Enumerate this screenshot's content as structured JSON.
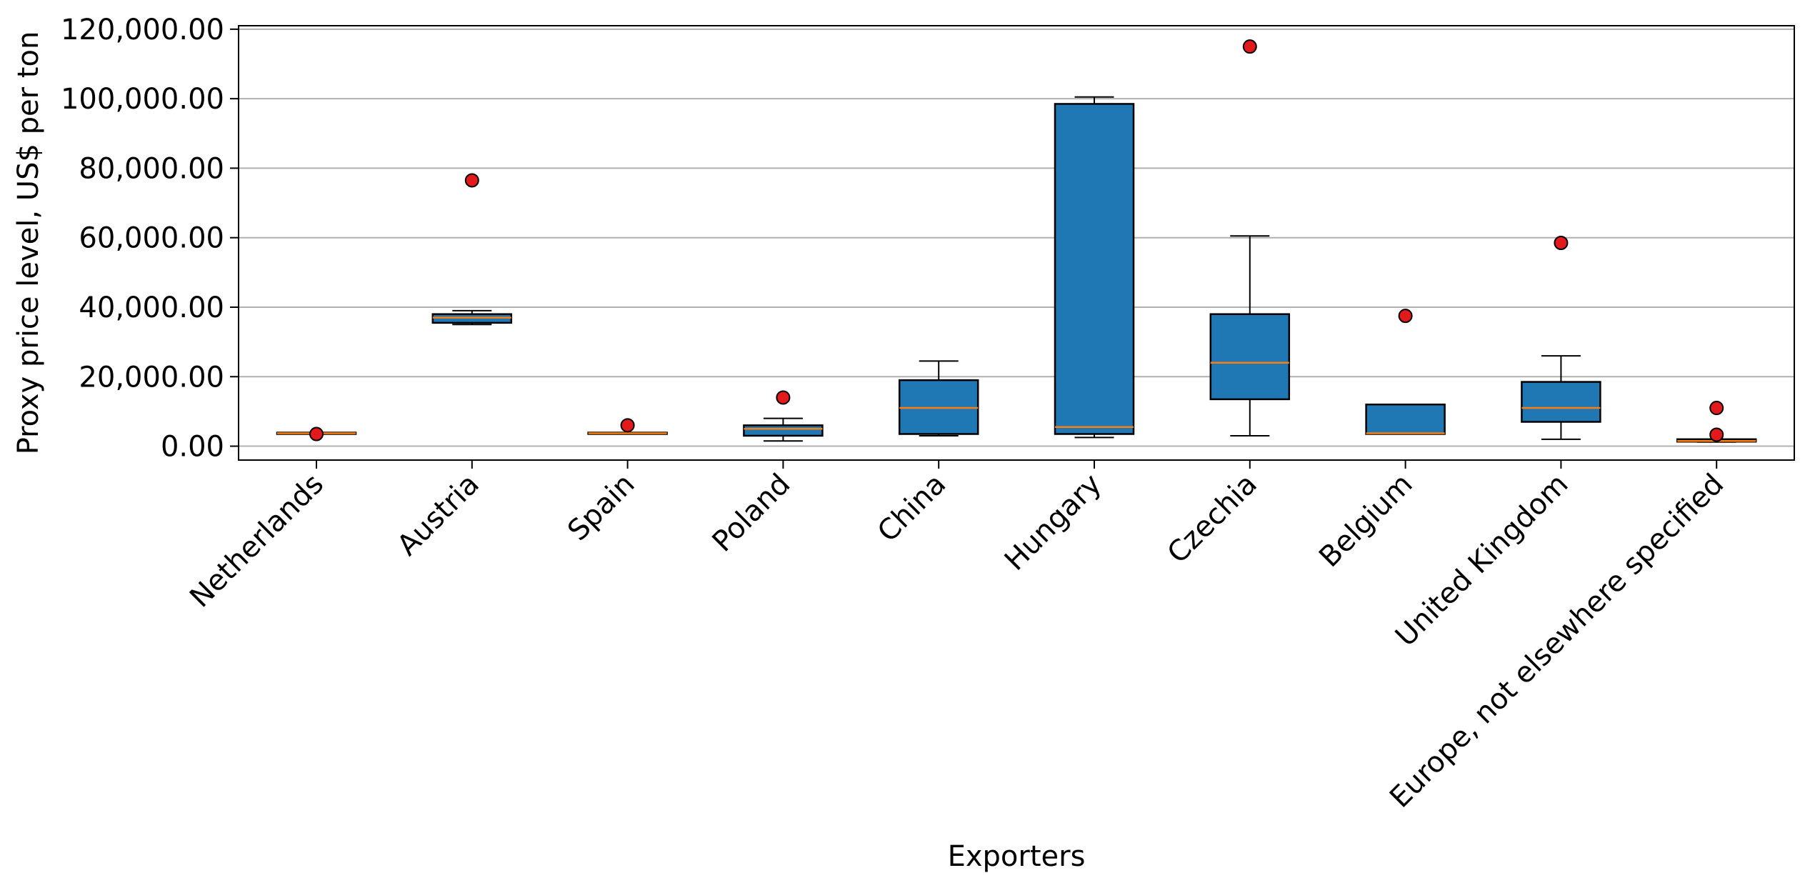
{
  "chart_data": {
    "type": "box",
    "xlabel": "Exporters",
    "ylabel": "Proxy price level, US$ per ton",
    "ylim": [
      -4000,
      121000
    ],
    "yticks": [
      0,
      20000,
      40000,
      60000,
      80000,
      100000,
      120000
    ],
    "ytick_labels": [
      "0.00",
      "20,000.00",
      "40,000.00",
      "60,000.00",
      "80,000.00",
      "100,000.00",
      "120,000.00"
    ],
    "grid": "horizontal",
    "box_color": "#1f77b4",
    "median_color": "#ff7f0e",
    "outlier_color": "#e31a1c",
    "categories": [
      "Netherlands",
      "Austria",
      "Spain",
      "Poland",
      "China",
      "Hungary",
      "Czechia",
      "Belgium",
      "United Kingdom",
      "Europe, not elsewhere specified"
    ],
    "boxes": [
      {
        "whislo": 3500,
        "q1": 3500,
        "med": 3700,
        "q3": 3900,
        "whishi": 3900,
        "fliers": [
          3500
        ]
      },
      {
        "whislo": 35000,
        "q1": 35500,
        "med": 37000,
        "q3": 38000,
        "whishi": 39000,
        "fliers": [
          76500
        ]
      },
      {
        "whislo": 3500,
        "q1": 3500,
        "med": 3700,
        "q3": 3900,
        "whishi": 3900,
        "fliers": [
          6000
        ]
      },
      {
        "whislo": 1500,
        "q1": 3000,
        "med": 5000,
        "q3": 6000,
        "whishi": 8000,
        "fliers": [
          14000
        ]
      },
      {
        "whislo": 3000,
        "q1": 3500,
        "med": 11000,
        "q3": 19000,
        "whishi": 24500,
        "fliers": []
      },
      {
        "whislo": 2500,
        "q1": 3500,
        "med": 5500,
        "q3": 98500,
        "whishi": 100500,
        "fliers": []
      },
      {
        "whislo": 3000,
        "q1": 13500,
        "med": 24000,
        "q3": 38000,
        "whishi": 60500,
        "fliers": [
          115000
        ]
      },
      {
        "whislo": 3500,
        "q1": 3500,
        "med": 3700,
        "q3": 12000,
        "whishi": 12000,
        "fliers": [
          37500
        ]
      },
      {
        "whislo": 2000,
        "q1": 7000,
        "med": 11000,
        "q3": 18500,
        "whishi": 26000,
        "fliers": [
          58500
        ]
      },
      {
        "whislo": 1200,
        "q1": 1300,
        "med": 1500,
        "q3": 2000,
        "whishi": 2000,
        "fliers": [
          11000,
          3300
        ]
      }
    ]
  }
}
